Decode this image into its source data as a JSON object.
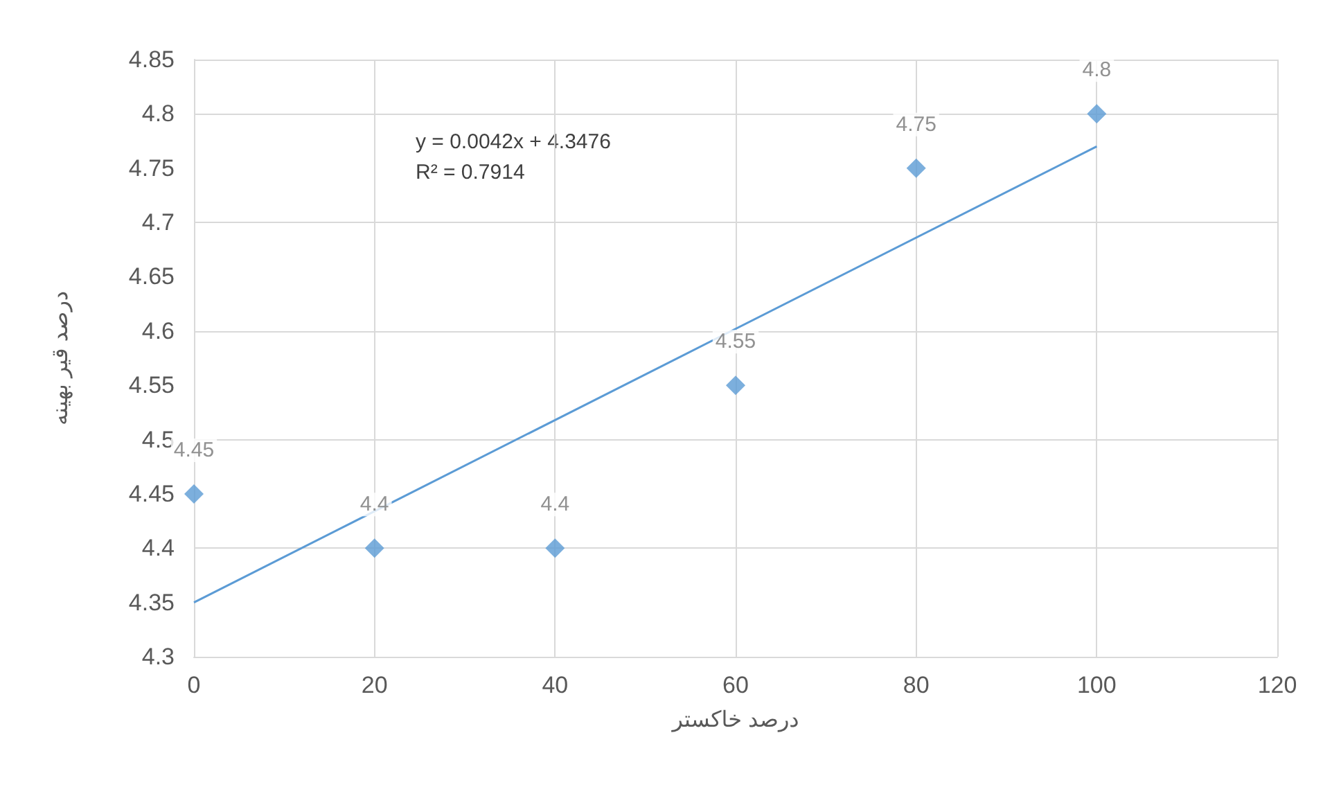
{
  "chart_data": {
    "type": "scatter",
    "xlabel": "درصد خاکستر",
    "ylabel": "درصد قیر بهینه",
    "x": [
      0,
      20,
      40,
      60,
      80,
      100
    ],
    "series": [
      {
        "marker": "diamond",
        "color": "#5b9bd5",
        "values": [
          4.45,
          4.4,
          4.4,
          4.55,
          4.75,
          4.8
        ],
        "value_labels": [
          "4.45",
          "4.4",
          "4.4",
          "4.55",
          "4.75",
          "4.8"
        ]
      },
      {
        "type": "line",
        "marker": "none",
        "color": "#5b9bd5",
        "x": [
          0,
          100
        ],
        "values": [
          4.35,
          4.77
        ]
      }
    ],
    "annotations": [
      "y = 0.0042x + 4.3476",
      "R² = 0.7914"
    ],
    "xlim": [
      0,
      120
    ],
    "xticks": [
      0,
      20,
      40,
      60,
      80,
      100,
      120
    ],
    "ylim": [
      4.3,
      4.85
    ],
    "yticks": [
      4.3,
      4.35,
      4.4,
      4.45,
      4.5,
      4.55,
      4.6,
      4.65,
      4.7,
      4.75,
      4.8,
      4.85
    ],
    "grid": true
  }
}
